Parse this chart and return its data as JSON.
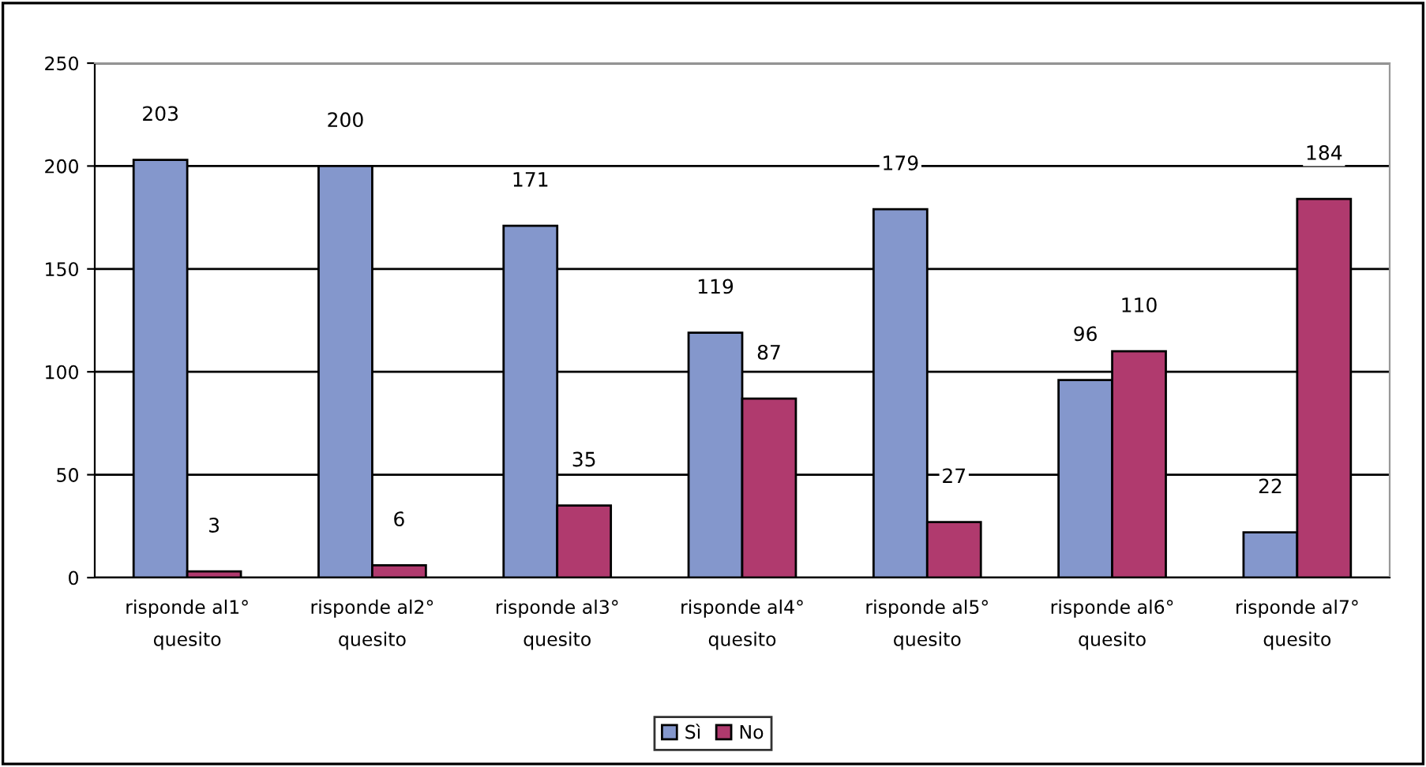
{
  "chart_data": {
    "type": "bar",
    "categories": [
      "risponde al1°\nquesito",
      "risponde al2°\nquesito",
      "risponde al3°\nquesito",
      "risponde al4°\nquesito",
      "risponde al5°\nquesito",
      "risponde al6°\nquesito",
      "risponde al7°\nquesito"
    ],
    "series": [
      {
        "name": "Sì",
        "color": "#8497cc",
        "values": [
          203,
          200,
          171,
          119,
          179,
          96,
          22
        ]
      },
      {
        "name": "No",
        "color": "#b03a6e",
        "values": [
          3,
          6,
          35,
          87,
          27,
          110,
          184
        ]
      }
    ],
    "ylim": [
      0,
      250
    ],
    "yticks": [
      0,
      50,
      100,
      150,
      200,
      250
    ],
    "grid": "y",
    "legend": "bottom",
    "data_labels": true
  }
}
